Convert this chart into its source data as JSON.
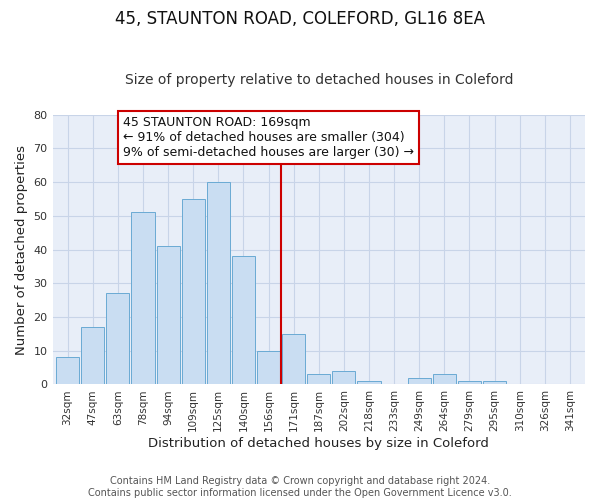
{
  "title": "45, STAUNTON ROAD, COLEFORD, GL16 8EA",
  "subtitle": "Size of property relative to detached houses in Coleford",
  "xlabel": "Distribution of detached houses by size in Coleford",
  "ylabel": "Number of detached properties",
  "bin_labels": [
    "32sqm",
    "47sqm",
    "63sqm",
    "78sqm",
    "94sqm",
    "109sqm",
    "125sqm",
    "140sqm",
    "156sqm",
    "171sqm",
    "187sqm",
    "202sqm",
    "218sqm",
    "233sqm",
    "249sqm",
    "264sqm",
    "279sqm",
    "295sqm",
    "310sqm",
    "326sqm",
    "341sqm"
  ],
  "bar_values": [
    8,
    17,
    27,
    51,
    41,
    55,
    60,
    38,
    10,
    15,
    3,
    4,
    1,
    0,
    2,
    3,
    1,
    1,
    0,
    0,
    0
  ],
  "bar_color": "#c9ddf2",
  "bar_edge_color": "#6aaad4",
  "vline_color": "#cc0000",
  "annotation_text": "45 STAUNTON ROAD: 169sqm\n← 91% of detached houses are smaller (304)\n9% of semi-detached houses are larger (30) →",
  "annotation_box_edge_color": "#cc0000",
  "ylim": [
    0,
    80
  ],
  "yticks": [
    0,
    10,
    20,
    30,
    40,
    50,
    60,
    70,
    80
  ],
  "grid_color": "#c8d4e8",
  "background_color": "#e8eef8",
  "footer_line1": "Contains HM Land Registry data © Crown copyright and database right 2024.",
  "footer_line2": "Contains public sector information licensed under the Open Government Licence v3.0.",
  "title_fontsize": 12,
  "subtitle_fontsize": 10,
  "axis_label_fontsize": 9.5,
  "tick_fontsize": 7.5,
  "annotation_fontsize": 9,
  "footer_fontsize": 7
}
